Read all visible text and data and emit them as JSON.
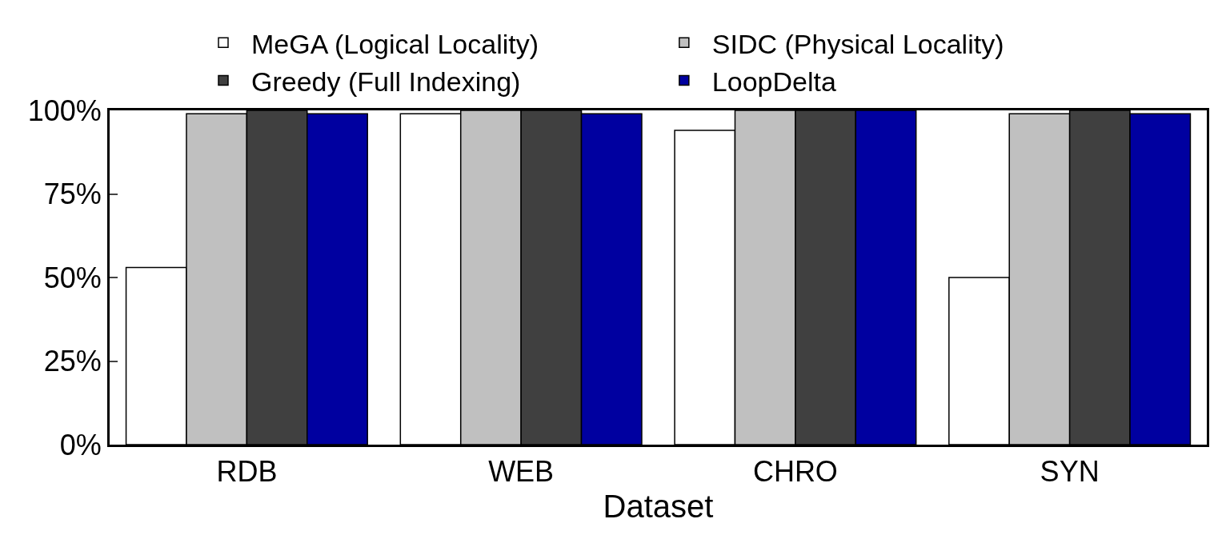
{
  "chart_data": {
    "type": "bar",
    "xlabel": "Dataset",
    "categories": [
      "RDB",
      "WEB",
      "CHRO",
      "SYN"
    ],
    "series": [
      {
        "name": "MeGA (Logical Locality)",
        "color": "#ffffff",
        "values": [
          53,
          99,
          94,
          50
        ]
      },
      {
        "name": "SIDC (Physical Locality)",
        "color": "#c0c0c0",
        "values": [
          99,
          100,
          100,
          99
        ]
      },
      {
        "name": "Greedy (Full Indexing)",
        "color": "#404040",
        "values": [
          100,
          100,
          100,
          100
        ]
      },
      {
        "name": "LoopDelta",
        "color": "#0000a0",
        "values": [
          99,
          99,
          100,
          99
        ]
      }
    ],
    "ylim": [
      0,
      100
    ],
    "yticks": [
      {
        "value": 0,
        "label": "0%"
      },
      {
        "value": 25,
        "label": "25%"
      },
      {
        "value": 50,
        "label": "50%"
      },
      {
        "value": 75,
        "label": "75%"
      },
      {
        "value": 100,
        "label": "100%"
      }
    ],
    "grid": false,
    "legend": "top"
  }
}
